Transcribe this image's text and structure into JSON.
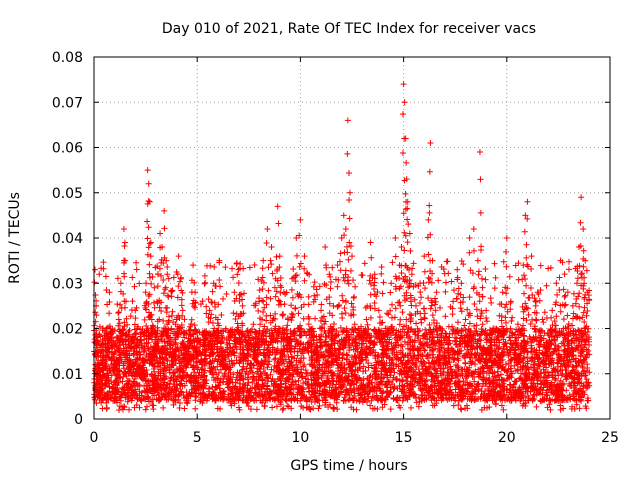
{
  "chart_data": {
    "type": "scatter",
    "title": "Day 010 of 2021, Rate Of TEC Index for receiver vacs",
    "xlabel": "GPS time / hours",
    "ylabel": "ROTI / TECUs",
    "xlim": [
      0,
      25
    ],
    "ylim": [
      0,
      0.08
    ],
    "x_ticks": [
      0,
      5,
      10,
      15,
      20,
      25
    ],
    "y_ticks": [
      0,
      0.01,
      0.02,
      0.03,
      0.04,
      0.05,
      0.06,
      0.07,
      0.08
    ],
    "x_tick_labels": [
      "0",
      "5",
      "10",
      "15",
      "20",
      "25"
    ],
    "y_tick_labels": [
      "0",
      "0.01",
      "0.02",
      "0.03",
      "0.04",
      "0.05",
      "0.06",
      "0.07",
      "0.08"
    ],
    "grid": true,
    "marker": "+",
    "series_color": "#ff0000",
    "series": [
      {
        "name": "ROTI",
        "x": [
          0.05,
          0.1,
          0.15,
          0.2,
          0.3,
          0.45,
          0.6,
          0.75,
          0.9,
          1.0,
          1.1,
          1.2,
          1.3,
          1.45,
          1.5,
          1.55,
          1.6,
          1.7,
          1.8,
          1.9,
          2.0,
          2.1,
          2.2,
          2.3,
          2.4,
          2.5,
          2.6,
          2.65,
          2.7,
          2.75,
          2.8,
          2.9,
          3.0,
          3.1,
          3.2,
          3.3,
          3.4,
          3.5,
          3.6,
          3.7,
          3.8,
          3.9,
          4.0,
          4.1,
          4.2,
          4.3,
          4.4,
          4.5,
          4.6,
          4.7,
          4.8,
          4.9,
          5.0,
          5.2,
          5.4,
          5.6,
          5.8,
          6.0,
          6.2,
          6.4,
          6.6,
          6.8,
          7.0,
          7.2,
          7.4,
          7.6,
          7.8,
          8.0,
          8.2,
          8.4,
          8.6,
          8.8,
          8.9,
          9.0,
          9.2,
          9.4,
          9.6,
          9.8,
          10.0,
          10.2,
          10.4,
          10.6,
          10.8,
          11.0,
          11.2,
          11.4,
          11.6,
          11.8,
          12.0,
          12.1,
          12.2,
          12.3,
          12.4,
          12.5,
          12.6,
          12.8,
          13.0,
          13.2,
          13.4,
          13.6,
          13.8,
          14.0,
          14.2,
          14.4,
          14.6,
          14.8,
          14.9,
          15.0,
          15.05,
          15.1,
          15.15,
          15.2,
          15.3,
          15.4,
          15.6,
          15.8,
          16.0,
          16.2,
          16.3,
          16.4,
          16.6,
          16.8,
          17.0,
          17.2,
          17.4,
          17.6,
          17.8,
          18.0,
          18.2,
          18.4,
          18.6,
          18.7,
          18.8,
          19.0,
          19.2,
          19.4,
          19.6,
          19.8,
          20.0,
          20.2,
          20.4,
          20.6,
          20.8,
          20.9,
          21.0,
          21.2,
          21.4,
          21.6,
          21.8,
          22.0,
          22.2,
          22.4,
          22.6,
          22.8,
          23.0,
          23.2,
          23.4,
          23.5,
          23.6,
          23.7,
          23.8,
          23.9
        ],
        "y": [
          0.033,
          0.025,
          0.018,
          0.012,
          0.009,
          0.014,
          0.02,
          0.028,
          0.016,
          0.011,
          0.013,
          0.022,
          0.03,
          0.042,
          0.039,
          0.026,
          0.015,
          0.01,
          0.012,
          0.018,
          0.024,
          0.017,
          0.011,
          0.009,
          0.013,
          0.028,
          0.055,
          0.052,
          0.048,
          0.036,
          0.022,
          0.014,
          0.019,
          0.032,
          0.041,
          0.038,
          0.046,
          0.035,
          0.027,
          0.018,
          0.012,
          0.015,
          0.022,
          0.036,
          0.031,
          0.024,
          0.016,
          0.012,
          0.014,
          0.021,
          0.034,
          0.028,
          0.019,
          0.013,
          0.017,
          0.024,
          0.03,
          0.022,
          0.015,
          0.011,
          0.019,
          0.028,
          0.033,
          0.025,
          0.017,
          0.012,
          0.016,
          0.026,
          0.035,
          0.042,
          0.038,
          0.031,
          0.047,
          0.036,
          0.028,
          0.022,
          0.031,
          0.04,
          0.044,
          0.036,
          0.027,
          0.02,
          0.015,
          0.024,
          0.038,
          0.032,
          0.025,
          0.034,
          0.04,
          0.045,
          0.042,
          0.066,
          0.05,
          0.036,
          0.027,
          0.02,
          0.015,
          0.022,
          0.039,
          0.032,
          0.024,
          0.016,
          0.02,
          0.03,
          0.04,
          0.034,
          0.038,
          0.074,
          0.07,
          0.062,
          0.053,
          0.048,
          0.041,
          0.032,
          0.025,
          0.03,
          0.036,
          0.044,
          0.061,
          0.035,
          0.028,
          0.02,
          0.014,
          0.018,
          0.026,
          0.033,
          0.03,
          0.022,
          0.04,
          0.042,
          0.035,
          0.059,
          0.031,
          0.024,
          0.017,
          0.013,
          0.019,
          0.028,
          0.04,
          0.026,
          0.018,
          0.014,
          0.034,
          0.045,
          0.048,
          0.036,
          0.025,
          0.018,
          0.013,
          0.017,
          0.024,
          0.03,
          0.035,
          0.027,
          0.021,
          0.025,
          0.03,
          0.038,
          0.049,
          0.042,
          0.035,
          0.028
        ]
      }
    ],
    "background_scatter": {
      "description": "dense cloud",
      "x_range": [
        0,
        24
      ],
      "typical_y_range": [
        0.004,
        0.02
      ],
      "extended_y_range": [
        0.002,
        0.035
      ]
    }
  }
}
